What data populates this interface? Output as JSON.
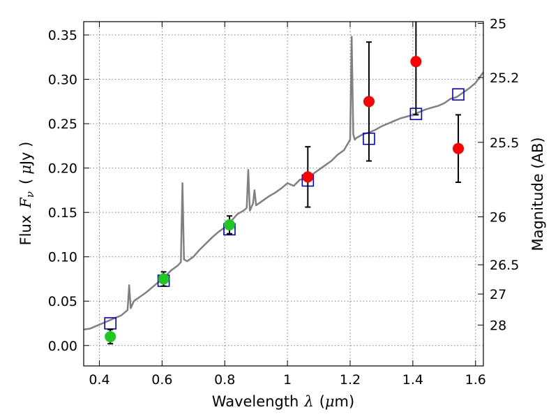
{
  "chart_data": {
    "type": "scatter",
    "xlabel": "Wavelength",
    "xlabel_symbol": "λ",
    "xlabel_unit_open": "(",
    "xlabel_unit_mu": "μ",
    "xlabel_unit_rest": "m)",
    "ylabel": "Flux",
    "ylabel_symbol": "F",
    "ylabel_sub": "ν",
    "ylabel_unit_open": "(",
    "ylabel_unit_mu": "μ",
    "ylabel_unit_rest": "Jy )",
    "y2label": "Magnitude (AB)",
    "xlim": [
      0.35,
      1.625
    ],
    "ylim": [
      -0.023,
      0.365
    ],
    "grid": true,
    "x_ticks": [
      0.4,
      0.6,
      0.8,
      1.0,
      1.2,
      1.4,
      1.6
    ],
    "x_tick_labels": [
      "0.4",
      "0.6",
      "0.8",
      "1",
      "1.2",
      "1.4",
      "1.6"
    ],
    "y_ticks": [
      0.0,
      0.05,
      0.1,
      0.15,
      0.2,
      0.25,
      0.3,
      0.35
    ],
    "y_tick_labels": [
      "0.00",
      "0.05",
      "0.10",
      "0.15",
      "0.20",
      "0.25",
      "0.30",
      "0.35"
    ],
    "y2_ticks": [
      {
        "label": "25",
        "flux": 0.363
      },
      {
        "label": "25.2",
        "flux": 0.302
      },
      {
        "label": "25.5",
        "flux": 0.229
      },
      {
        "label": "26",
        "flux": 0.145
      },
      {
        "label": "26.5",
        "flux": 0.091
      },
      {
        "label": "27",
        "flux": 0.058
      },
      {
        "label": "28",
        "flux": 0.023
      }
    ],
    "series": [
      {
        "kind": "line",
        "color": "#808080",
        "x": [
          0.35,
          0.37,
          0.39,
          0.41,
          0.43,
          0.45,
          0.47,
          0.49,
          0.495,
          0.5,
          0.51,
          0.53,
          0.55,
          0.57,
          0.59,
          0.61,
          0.63,
          0.65,
          0.66,
          0.665,
          0.67,
          0.68,
          0.7,
          0.72,
          0.74,
          0.76,
          0.78,
          0.8,
          0.82,
          0.84,
          0.86,
          0.87,
          0.875,
          0.88,
          0.89,
          0.895,
          0.9,
          0.92,
          0.94,
          0.96,
          0.98,
          1.0,
          1.02,
          1.04,
          1.06,
          1.08,
          1.1,
          1.12,
          1.14,
          1.16,
          1.18,
          1.19,
          1.2,
          1.205,
          1.21,
          1.215,
          1.22,
          1.24,
          1.26,
          1.28,
          1.3,
          1.32,
          1.34,
          1.36,
          1.38,
          1.4,
          1.42,
          1.44,
          1.46,
          1.48,
          1.5,
          1.52,
          1.54,
          1.56,
          1.58,
          1.6,
          1.625
        ],
        "y": [
          0.018,
          0.019,
          0.022,
          0.025,
          0.028,
          0.031,
          0.034,
          0.04,
          0.068,
          0.042,
          0.05,
          0.055,
          0.06,
          0.066,
          0.072,
          0.078,
          0.085,
          0.09,
          0.094,
          0.183,
          0.097,
          0.095,
          0.1,
          0.108,
          0.115,
          0.122,
          0.128,
          0.133,
          0.14,
          0.148,
          0.152,
          0.155,
          0.198,
          0.152,
          0.16,
          0.175,
          0.158,
          0.163,
          0.168,
          0.172,
          0.177,
          0.183,
          0.18,
          0.187,
          0.188,
          0.193,
          0.198,
          0.203,
          0.208,
          0.215,
          0.22,
          0.226,
          0.232,
          0.348,
          0.238,
          0.232,
          0.234,
          0.238,
          0.24,
          0.243,
          0.247,
          0.25,
          0.253,
          0.256,
          0.258,
          0.26,
          0.263,
          0.266,
          0.268,
          0.27,
          0.273,
          0.278,
          0.28,
          0.285,
          0.29,
          0.296,
          0.308
        ]
      },
      {
        "kind": "squares",
        "color": "#0000cc",
        "x": [
          0.435,
          0.605,
          0.815,
          1.065,
          1.26,
          1.41,
          1.545
        ],
        "y": [
          0.025,
          0.073,
          0.131,
          0.186,
          0.233,
          0.261,
          0.283
        ]
      },
      {
        "kind": "points",
        "color": "#1ec81e",
        "x": [
          0.435,
          0.605,
          0.815
        ],
        "y": [
          0.01,
          0.075,
          0.136
        ],
        "err": [
          0.008,
          0.008,
          0.01
        ]
      },
      {
        "kind": "points",
        "color": "#ff0000",
        "x": [
          1.065,
          1.26,
          1.41,
          1.545
        ],
        "y": [
          0.19,
          0.275,
          0.32,
          0.222
        ],
        "err": [
          0.034,
          0.067,
          0.06,
          0.038
        ]
      }
    ]
  }
}
